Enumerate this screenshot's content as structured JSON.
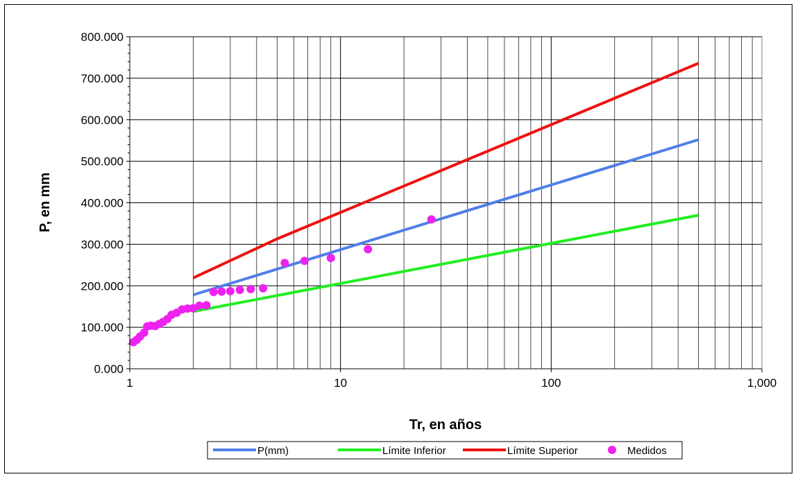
{
  "chart_data": {
    "type": "line",
    "x_scale": "log",
    "xlabel": "Tr, en años",
    "ylabel": "P, en mm",
    "xlim": [
      1,
      1000
    ],
    "ylim": [
      0,
      800
    ],
    "x_ticks": [
      1,
      10,
      100,
      1000
    ],
    "x_tick_labels": [
      "1",
      "10",
      "100",
      "1,000"
    ],
    "y_ticks": [
      0,
      100,
      200,
      300,
      400,
      500,
      600,
      700,
      800
    ],
    "y_tick_labels": [
      "0.000",
      "100.000",
      "200.000",
      "300.000",
      "400.000",
      "500.000",
      "600.000",
      "700.000",
      "800.000"
    ],
    "grid": true,
    "legend_position": "bottom",
    "series": [
      {
        "name": "P(mm)",
        "type": "line",
        "color": "#4f7fe8",
        "x": [
          2,
          500
        ],
        "y": [
          178,
          552
        ]
      },
      {
        "name": "Límite Inferior",
        "type": "line",
        "color": "#22ee22",
        "x": [
          2,
          500
        ],
        "y": [
          138,
          370
        ]
      },
      {
        "name": "Límite Superior",
        "type": "line",
        "color": "#ee1111",
        "x": [
          2,
          5,
          500
        ],
        "y": [
          219,
          313,
          736
        ]
      },
      {
        "name": "Medidos",
        "type": "scatter",
        "color": "#ee22ee",
        "x": [
          1.04,
          1.08,
          1.12,
          1.17,
          1.21,
          1.26,
          1.32,
          1.38,
          1.44,
          1.51,
          1.58,
          1.67,
          1.77,
          1.88,
          2.0,
          2.14,
          2.31,
          2.5,
          2.73,
          3.0,
          3.33,
          3.75,
          4.29,
          5.44,
          6.75,
          9.0,
          13.5,
          27.0
        ],
        "y": [
          64,
          70,
          78,
          87,
          102,
          104,
          103,
          108,
          113,
          120,
          130,
          135,
          143,
          145,
          146,
          152,
          153,
          185,
          186,
          187,
          190,
          192,
          194,
          255,
          260,
          267,
          288,
          360
        ]
      }
    ]
  }
}
